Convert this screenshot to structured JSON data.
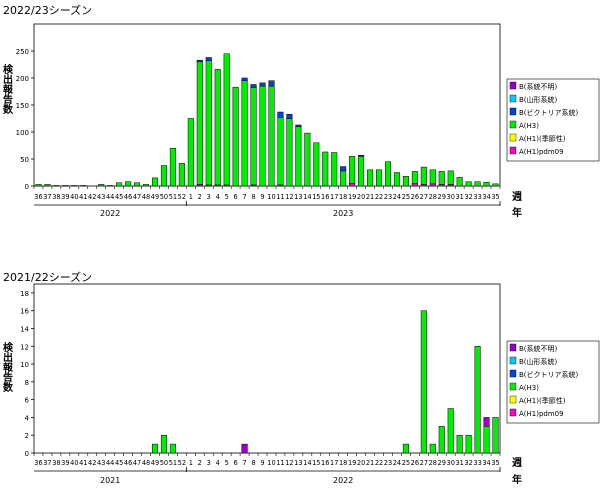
{
  "chart_data": [
    {
      "type": "bar",
      "stacked": true,
      "title": "2022/23シーズン",
      "ylabel": "検出報告数",
      "xlabel_week": "週",
      "xlabel_year": "年",
      "ylim": [
        0,
        300
      ],
      "yticks": [
        0,
        50,
        100,
        150,
        200,
        250
      ],
      "grid": false,
      "legend_placement": "right",
      "categories": [
        "36",
        "37",
        "38",
        "39",
        "40",
        "41",
        "42",
        "43",
        "44",
        "45",
        "46",
        "47",
        "48",
        "49",
        "50",
        "51",
        "52",
        "1",
        "2",
        "3",
        "4",
        "5",
        "6",
        "7",
        "8",
        "9",
        "10",
        "11",
        "12",
        "13",
        "14",
        "15",
        "16",
        "17",
        "18",
        "19",
        "20",
        "21",
        "22",
        "23",
        "24",
        "25",
        "26",
        "27",
        "28",
        "29",
        "30",
        "31",
        "32",
        "33",
        "34",
        "35"
      ],
      "years": [
        {
          "label": "2022",
          "start": 0,
          "end": 16
        },
        {
          "label": "2023",
          "start": 17,
          "end": 51
        }
      ],
      "series": [
        {
          "name": "A(H1)pdm09",
          "color": "#ff00cc",
          "values": [
            0,
            0,
            0,
            0,
            0,
            0,
            0,
            0,
            0,
            0,
            0,
            0,
            0,
            0,
            0,
            0,
            0,
            0,
            3,
            2,
            2,
            2,
            0,
            0,
            2,
            0,
            0,
            2,
            0,
            0,
            0,
            0,
            0,
            0,
            0,
            5,
            0,
            0,
            0,
            0,
            0,
            0,
            5,
            3,
            4,
            3,
            3,
            0,
            0,
            0,
            0,
            0
          ]
        },
        {
          "name": "A(H1)(季節性)",
          "color": "#ffff00",
          "values": [
            0,
            0,
            0,
            0,
            0,
            0,
            0,
            0,
            0,
            0,
            0,
            0,
            0,
            0,
            0,
            0,
            0,
            0,
            0,
            0,
            0,
            0,
            0,
            0,
            0,
            0,
            0,
            0,
            0,
            0,
            0,
            0,
            0,
            0,
            0,
            0,
            0,
            0,
            0,
            0,
            0,
            0,
            0,
            0,
            0,
            0,
            0,
            0,
            0,
            0,
            0,
            0
          ]
        },
        {
          "name": "A(H3)",
          "color": "#00ee00",
          "values": [
            3,
            3,
            1,
            1,
            1,
            1,
            0,
            3,
            1,
            6,
            8,
            6,
            3,
            15,
            38,
            70,
            42,
            125,
            227,
            230,
            214,
            243,
            183,
            195,
            180,
            185,
            185,
            125,
            125,
            110,
            98,
            80,
            63,
            62,
            28,
            50,
            55,
            30,
            30,
            45,
            25,
            18,
            22,
            32,
            26,
            24,
            25,
            16,
            8,
            8,
            7,
            4
          ]
        },
        {
          "name": "B(ビクトリア系統)",
          "color": "#0044dd",
          "values": [
            0,
            0,
            0,
            0,
            0,
            0,
            0,
            0,
            0,
            0,
            0,
            0,
            0,
            0,
            0,
            0,
            0,
            0,
            3,
            6,
            0,
            0,
            0,
            5,
            6,
            6,
            10,
            10,
            8,
            3,
            0,
            0,
            0,
            0,
            8,
            0,
            2,
            0,
            0,
            0,
            0,
            0,
            0,
            0,
            0,
            0,
            0,
            0,
            0,
            0,
            0,
            0
          ]
        },
        {
          "name": "B(山形系統)",
          "color": "#00ccff",
          "values": [
            0,
            0,
            0,
            0,
            0,
            0,
            0,
            0,
            0,
            0,
            0,
            0,
            0,
            0,
            0,
            0,
            0,
            0,
            0,
            0,
            0,
            0,
            0,
            0,
            0,
            0,
            0,
            0,
            0,
            0,
            0,
            0,
            0,
            0,
            0,
            0,
            0,
            0,
            0,
            0,
            0,
            0,
            0,
            0,
            0,
            0,
            0,
            0,
            0,
            0,
            0,
            0
          ]
        },
        {
          "name": "B(系統不明)",
          "color": "#9900cc",
          "values": [
            0,
            0,
            0,
            0,
            0,
            0,
            0,
            0,
            0,
            0,
            0,
            0,
            0,
            0,
            0,
            0,
            0,
            0,
            0,
            0,
            0,
            0,
            0,
            0,
            0,
            0,
            0,
            0,
            0,
            0,
            0,
            0,
            0,
            0,
            0,
            0,
            0,
            0,
            0,
            0,
            0,
            0,
            0,
            0,
            0,
            0,
            0,
            0,
            0,
            0,
            0,
            0
          ]
        }
      ]
    },
    {
      "type": "bar",
      "stacked": true,
      "title": "2021/22シーズン",
      "ylabel": "検出報告数",
      "xlabel_week": "週",
      "xlabel_year": "年",
      "ylim": [
        0,
        19
      ],
      "yticks": [
        0,
        2,
        4,
        6,
        8,
        10,
        12,
        14,
        16,
        18
      ],
      "grid": false,
      "legend_placement": "right",
      "categories": [
        "36",
        "37",
        "38",
        "39",
        "40",
        "41",
        "42",
        "43",
        "44",
        "45",
        "46",
        "47",
        "48",
        "49",
        "50",
        "51",
        "52",
        "1",
        "2",
        "3",
        "4",
        "5",
        "6",
        "7",
        "8",
        "9",
        "10",
        "11",
        "12",
        "13",
        "14",
        "15",
        "16",
        "17",
        "18",
        "19",
        "20",
        "21",
        "22",
        "23",
        "24",
        "25",
        "26",
        "27",
        "28",
        "29",
        "30",
        "31",
        "32",
        "33",
        "34",
        "35"
      ],
      "years": [
        {
          "label": "2021",
          "start": 0,
          "end": 16
        },
        {
          "label": "2022",
          "start": 17,
          "end": 51
        }
      ],
      "series": [
        {
          "name": "A(H1)pdm09",
          "color": "#ff00cc",
          "values": [
            0,
            0,
            0,
            0,
            0,
            0,
            0,
            0,
            0,
            0,
            0,
            0,
            0,
            0,
            0,
            0,
            0,
            0,
            0,
            0,
            0,
            0,
            0,
            0,
            0,
            0,
            0,
            0,
            0,
            0,
            0,
            0,
            0,
            0,
            0,
            0,
            0,
            0,
            0,
            0,
            0,
            0,
            0,
            0,
            0,
            0,
            0,
            0,
            0,
            0,
            0,
            0
          ]
        },
        {
          "name": "A(H1)(季節性)",
          "color": "#ffff00",
          "values": [
            0,
            0,
            0,
            0,
            0,
            0,
            0,
            0,
            0,
            0,
            0,
            0,
            0,
            0,
            0,
            0,
            0,
            0,
            0,
            0,
            0,
            0,
            0,
            0,
            0,
            0,
            0,
            0,
            0,
            0,
            0,
            0,
            0,
            0,
            0,
            0,
            0,
            0,
            0,
            0,
            0,
            0,
            0,
            0,
            0,
            0,
            0,
            0,
            0,
            0,
            0,
            0
          ]
        },
        {
          "name": "A(H3)",
          "color": "#00ee00",
          "values": [
            0,
            0,
            0,
            0,
            0,
            0,
            0,
            0,
            0,
            0,
            0,
            0,
            0,
            1,
            2,
            1,
            0,
            0,
            0,
            0,
            0,
            0,
            0,
            0,
            0,
            0,
            0,
            0,
            0,
            0,
            0,
            0,
            0,
            0,
            0,
            0,
            0,
            0,
            0,
            0,
            0,
            1,
            0,
            16,
            1,
            3,
            5,
            2,
            2,
            12,
            3,
            4
          ]
        },
        {
          "name": "B(ビクトリア系統)",
          "color": "#0044dd",
          "values": [
            0,
            0,
            0,
            0,
            0,
            0,
            0,
            0,
            0,
            0,
            0,
            0,
            0,
            0,
            0,
            0,
            0,
            0,
            0,
            0,
            0,
            0,
            0,
            0,
            0,
            0,
            0,
            0,
            0,
            0,
            0,
            0,
            0,
            0,
            0,
            0,
            0,
            0,
            0,
            0,
            0,
            0,
            0,
            0,
            0,
            0,
            0,
            0,
            0,
            0,
            0,
            0
          ]
        },
        {
          "name": "B(山形系統)",
          "color": "#00ccff",
          "values": [
            0,
            0,
            0,
            0,
            0,
            0,
            0,
            0,
            0,
            0,
            0,
            0,
            0,
            0,
            0,
            0,
            0,
            0,
            0,
            0,
            0,
            0,
            0,
            0,
            0,
            0,
            0,
            0,
            0,
            0,
            0,
            0,
            0,
            0,
            0,
            0,
            0,
            0,
            0,
            0,
            0,
            0,
            0,
            0,
            0,
            0,
            0,
            0,
            0,
            0,
            0,
            0
          ]
        },
        {
          "name": "B(系統不明)",
          "color": "#9900cc",
          "values": [
            0,
            0,
            0,
            0,
            0,
            0,
            0,
            0,
            0,
            0,
            0,
            0,
            0,
            0,
            0,
            0,
            0,
            0,
            0,
            0,
            0,
            0,
            0,
            1,
            0,
            0,
            0,
            0,
            0,
            0,
            0,
            0,
            0,
            0,
            0,
            0,
            0,
            0,
            0,
            0,
            0,
            0,
            0,
            0,
            0,
            0,
            0,
            0,
            0,
            0,
            1,
            0
          ]
        }
      ]
    }
  ]
}
